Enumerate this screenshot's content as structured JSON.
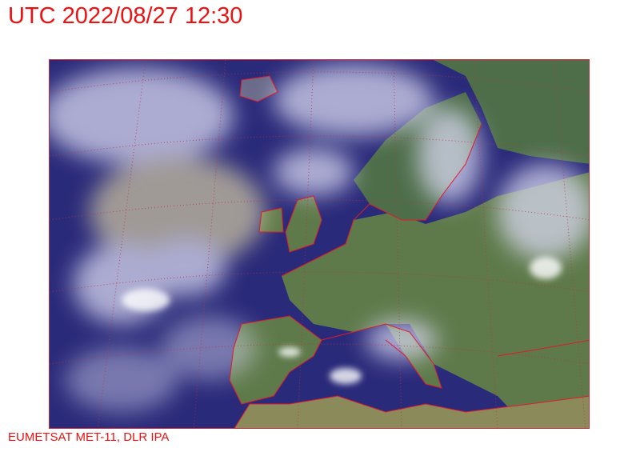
{
  "header": {
    "title": "UTC 2022/08/27 12:30"
  },
  "footer": {
    "credit": "EUMETSAT MET-11, DLR IPA"
  },
  "map": {
    "type": "satellite image (RGB composite)",
    "region": "Europe and North Atlantic",
    "colors": {
      "ocean": "#2a2a7a",
      "land": "#5e7a4a",
      "cloud": "#d8d8f0",
      "coastline": "#e01a2a",
      "graticule": "#c03040",
      "text": "#ee1111"
    }
  }
}
